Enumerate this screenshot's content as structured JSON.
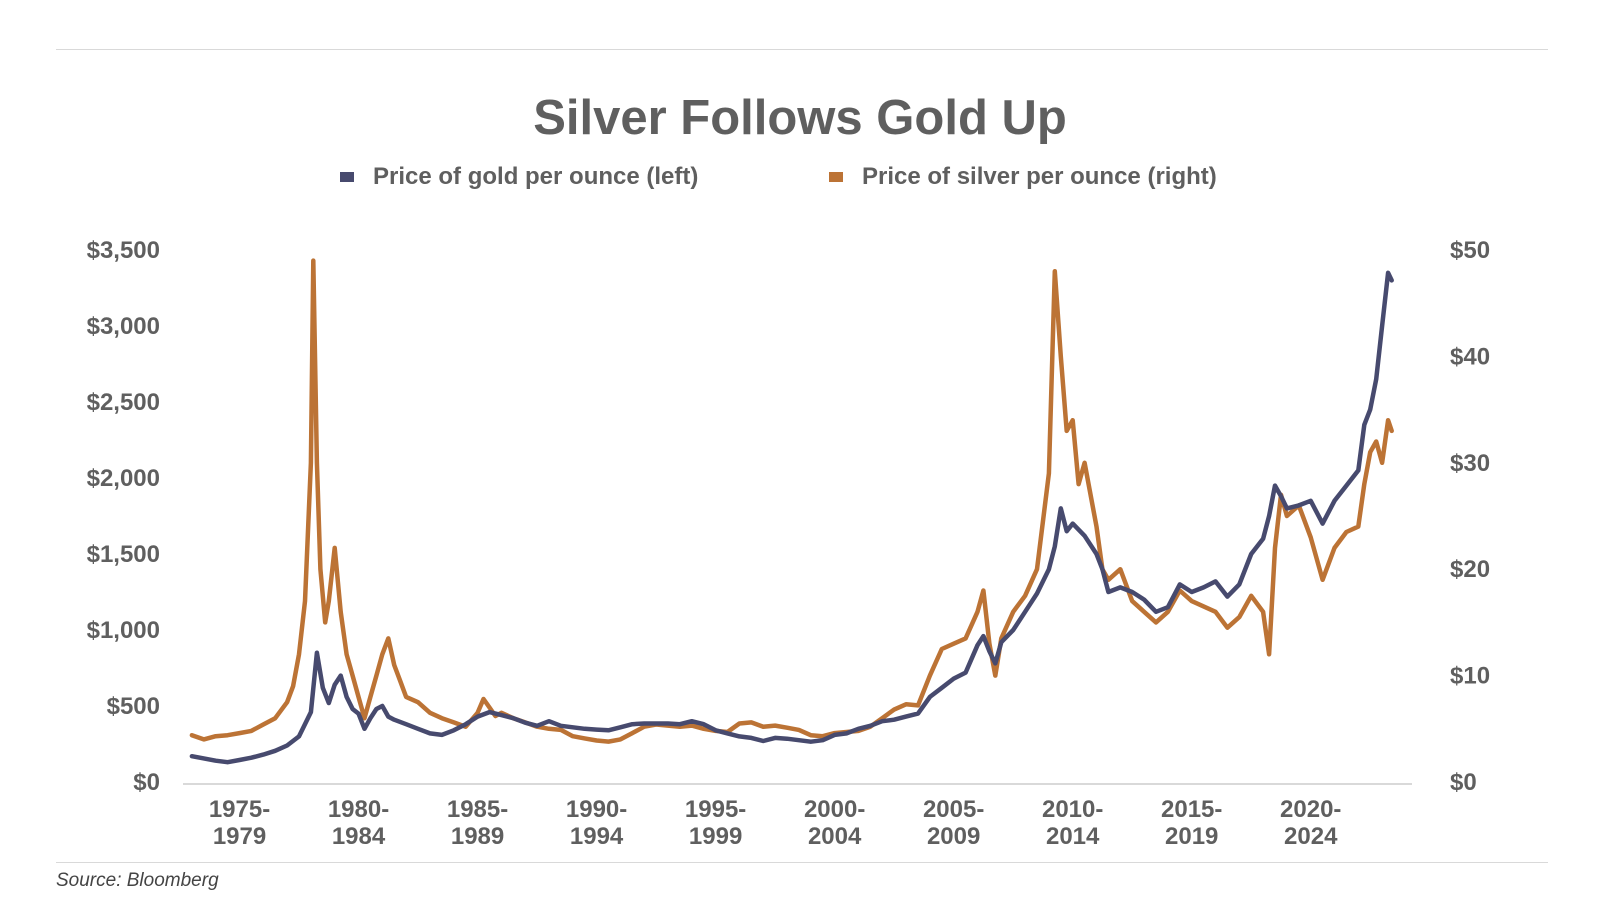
{
  "chart_data": {
    "type": "line",
    "title": "Silver Follows Gold Up",
    "colors": {
      "gold": "#474a6e",
      "silver": "#bc7335",
      "axis": "#d9d9d9",
      "text": "#5f5f5f"
    },
    "legend": {
      "placement": "top-center"
    },
    "grid": false,
    "left_axis": {
      "ylim": [
        0,
        3500
      ],
      "ticks": [
        0,
        500,
        1000,
        1500,
        2000,
        2500,
        3000,
        3500
      ],
      "tick_labels": [
        "$0",
        "$500",
        "$1,000",
        "$1,500",
        "$2,000",
        "$2,500",
        "$3,000",
        "$3,500"
      ]
    },
    "right_axis": {
      "ylim": [
        0,
        50
      ],
      "ticks": [
        0,
        10,
        20,
        30,
        40,
        50
      ],
      "tick_labels": [
        "$0",
        "$10",
        "$20",
        "$30",
        "$40",
        "$50"
      ]
    },
    "x_axis": {
      "xlim": [
        1974.5,
        2025.75
      ],
      "category_labels": [
        {
          "x": 1977,
          "line1": "1975-",
          "line2": "1979"
        },
        {
          "x": 1982,
          "line1": "1980-",
          "line2": "1984"
        },
        {
          "x": 1987,
          "line1": "1985-",
          "line2": "1989"
        },
        {
          "x": 1992,
          "line1": "1990-",
          "line2": "1994"
        },
        {
          "x": 1997,
          "line1": "1995-",
          "line2": "1999"
        },
        {
          "x": 2002,
          "line1": "2000-",
          "line2": "2004"
        },
        {
          "x": 2007,
          "line1": "2005-",
          "line2": "2009"
        },
        {
          "x": 2012,
          "line1": "2010-",
          "line2": "2014"
        },
        {
          "x": 2017,
          "line1": "2015-",
          "line2": "2019"
        },
        {
          "x": 2022,
          "line1": "2020-",
          "line2": "2024"
        }
      ]
    },
    "series": [
      {
        "name": "Price of gold per ounce (left)",
        "axis": "left",
        "points": [
          [
            1975,
            170
          ],
          [
            1975.5,
            155
          ],
          [
            1976,
            140
          ],
          [
            1976.5,
            130
          ],
          [
            1977,
            145
          ],
          [
            1977.5,
            160
          ],
          [
            1978,
            180
          ],
          [
            1978.5,
            205
          ],
          [
            1979,
            240
          ],
          [
            1979.5,
            300
          ],
          [
            1980,
            460
          ],
          [
            1980.25,
            850
          ],
          [
            1980.5,
            620
          ],
          [
            1980.75,
            520
          ],
          [
            1981,
            640
          ],
          [
            1981.25,
            700
          ],
          [
            1981.5,
            560
          ],
          [
            1981.75,
            480
          ],
          [
            1982,
            450
          ],
          [
            1982.25,
            350
          ],
          [
            1982.5,
            420
          ],
          [
            1982.75,
            480
          ],
          [
            1983,
            500
          ],
          [
            1983.25,
            430
          ],
          [
            1983.5,
            410
          ],
          [
            1984,
            380
          ],
          [
            1984.5,
            350
          ],
          [
            1985,
            320
          ],
          [
            1985.5,
            310
          ],
          [
            1986,
            340
          ],
          [
            1986.5,
            380
          ],
          [
            1987,
            430
          ],
          [
            1987.5,
            460
          ],
          [
            1988,
            440
          ],
          [
            1988.5,
            420
          ],
          [
            1989,
            390
          ],
          [
            1989.5,
            370
          ],
          [
            1990,
            400
          ],
          [
            1990.5,
            370
          ],
          [
            1991,
            360
          ],
          [
            1991.5,
            350
          ],
          [
            1992,
            345
          ],
          [
            1992.5,
            340
          ],
          [
            1993,
            360
          ],
          [
            1993.5,
            380
          ],
          [
            1994,
            385
          ],
          [
            1994.5,
            385
          ],
          [
            1995,
            385
          ],
          [
            1995.5,
            380
          ],
          [
            1996,
            400
          ],
          [
            1996.5,
            380
          ],
          [
            1997,
            340
          ],
          [
            1997.5,
            320
          ],
          [
            1998,
            300
          ],
          [
            1998.5,
            290
          ],
          [
            1999,
            270
          ],
          [
            1999.5,
            290
          ],
          [
            2000,
            285
          ],
          [
            2000.5,
            275
          ],
          [
            2001,
            265
          ],
          [
            2001.5,
            275
          ],
          [
            2002,
            310
          ],
          [
            2002.5,
            320
          ],
          [
            2003,
            350
          ],
          [
            2003.5,
            370
          ],
          [
            2004,
            400
          ],
          [
            2004.5,
            410
          ],
          [
            2005,
            430
          ],
          [
            2005.5,
            450
          ],
          [
            2006,
            560
          ],
          [
            2006.5,
            620
          ],
          [
            2007,
            680
          ],
          [
            2007.5,
            720
          ],
          [
            2008,
            900
          ],
          [
            2008.25,
            960
          ],
          [
            2008.5,
            860
          ],
          [
            2008.75,
            780
          ],
          [
            2009,
            920
          ],
          [
            2009.5,
            1000
          ],
          [
            2010,
            1120
          ],
          [
            2010.5,
            1240
          ],
          [
            2011,
            1400
          ],
          [
            2011.25,
            1550
          ],
          [
            2011.5,
            1800
          ],
          [
            2011.75,
            1650
          ],
          [
            2012,
            1700
          ],
          [
            2012.5,
            1620
          ],
          [
            2013,
            1500
          ],
          [
            2013.25,
            1400
          ],
          [
            2013.5,
            1250
          ],
          [
            2014,
            1280
          ],
          [
            2014.5,
            1250
          ],
          [
            2015,
            1200
          ],
          [
            2015.5,
            1120
          ],
          [
            2016,
            1150
          ],
          [
            2016.5,
            1300
          ],
          [
            2017,
            1250
          ],
          [
            2017.5,
            1280
          ],
          [
            2018,
            1320
          ],
          [
            2018.5,
            1220
          ],
          [
            2019,
            1300
          ],
          [
            2019.5,
            1500
          ],
          [
            2020,
            1600
          ],
          [
            2020.25,
            1750
          ],
          [
            2020.5,
            1950
          ],
          [
            2020.75,
            1880
          ],
          [
            2021,
            1800
          ],
          [
            2021.5,
            1820
          ],
          [
            2022,
            1850
          ],
          [
            2022.5,
            1700
          ],
          [
            2023,
            1850
          ],
          [
            2023.5,
            1950
          ],
          [
            2024,
            2050
          ],
          [
            2024.25,
            2350
          ],
          [
            2024.5,
            2450
          ],
          [
            2024.75,
            2650
          ],
          [
            2025,
            3000
          ],
          [
            2025.25,
            3350
          ],
          [
            2025.4,
            3300
          ]
        ]
      },
      {
        "name": "Price of silver per ounce (right)",
        "axis": "right",
        "points": [
          [
            1975,
            4.4
          ],
          [
            1975.5,
            4.0
          ],
          [
            1976,
            4.3
          ],
          [
            1976.5,
            4.4
          ],
          [
            1977,
            4.6
          ],
          [
            1977.5,
            4.8
          ],
          [
            1978,
            5.4
          ],
          [
            1978.5,
            6.0
          ],
          [
            1979,
            7.5
          ],
          [
            1979.25,
            9.0
          ],
          [
            1979.5,
            12.0
          ],
          [
            1979.75,
            17.0
          ],
          [
            1980,
            30.0
          ],
          [
            1980.1,
            49.0
          ],
          [
            1980.25,
            30.0
          ],
          [
            1980.4,
            20.0
          ],
          [
            1980.6,
            15.0
          ],
          [
            1980.75,
            17.0
          ],
          [
            1981,
            22.0
          ],
          [
            1981.25,
            16.0
          ],
          [
            1981.5,
            12.0
          ],
          [
            1981.75,
            10.0
          ],
          [
            1982,
            8.0
          ],
          [
            1982.25,
            6.0
          ],
          [
            1982.5,
            8.0
          ],
          [
            1982.75,
            10.0
          ],
          [
            1983,
            12.0
          ],
          [
            1983.25,
            13.5
          ],
          [
            1983.5,
            11.0
          ],
          [
            1983.75,
            9.5
          ],
          [
            1984,
            8.0
          ],
          [
            1984.5,
            7.5
          ],
          [
            1985,
            6.5
          ],
          [
            1985.5,
            6.0
          ],
          [
            1986,
            5.6
          ],
          [
            1986.5,
            5.2
          ],
          [
            1987,
            6.5
          ],
          [
            1987.25,
            7.8
          ],
          [
            1987.5,
            7.0
          ],
          [
            1987.75,
            6.2
          ],
          [
            1988,
            6.5
          ],
          [
            1988.5,
            6.0
          ],
          [
            1989,
            5.6
          ],
          [
            1989.5,
            5.2
          ],
          [
            1990,
            5.0
          ],
          [
            1990.5,
            4.9
          ],
          [
            1991,
            4.3
          ],
          [
            1991.5,
            4.1
          ],
          [
            1992,
            3.9
          ],
          [
            1992.5,
            3.8
          ],
          [
            1993,
            4.0
          ],
          [
            1993.5,
            4.6
          ],
          [
            1994,
            5.2
          ],
          [
            1994.5,
            5.4
          ],
          [
            1995,
            5.3
          ],
          [
            1995.5,
            5.2
          ],
          [
            1996,
            5.3
          ],
          [
            1996.5,
            5.0
          ],
          [
            1997,
            4.8
          ],
          [
            1997.5,
            4.7
          ],
          [
            1998,
            5.5
          ],
          [
            1998.5,
            5.6
          ],
          [
            1999,
            5.2
          ],
          [
            1999.5,
            5.3
          ],
          [
            2000,
            5.1
          ],
          [
            2000.5,
            4.9
          ],
          [
            2001,
            4.4
          ],
          [
            2001.5,
            4.3
          ],
          [
            2002,
            4.6
          ],
          [
            2002.5,
            4.7
          ],
          [
            2003,
            4.8
          ],
          [
            2003.5,
            5.2
          ],
          [
            2004,
            6.0
          ],
          [
            2004.5,
            6.8
          ],
          [
            2005,
            7.3
          ],
          [
            2005.5,
            7.2
          ],
          [
            2006,
            10.0
          ],
          [
            2006.5,
            12.5
          ],
          [
            2007,
            13.0
          ],
          [
            2007.5,
            13.5
          ],
          [
            2008,
            16.0
          ],
          [
            2008.25,
            18.0
          ],
          [
            2008.5,
            13.0
          ],
          [
            2008.75,
            10.0
          ],
          [
            2009,
            13.5
          ],
          [
            2009.5,
            16.0
          ],
          [
            2010,
            17.5
          ],
          [
            2010.5,
            20.0
          ],
          [
            2011,
            29.0
          ],
          [
            2011.25,
            48.0
          ],
          [
            2011.5,
            40.0
          ],
          [
            2011.75,
            33.0
          ],
          [
            2012,
            34.0
          ],
          [
            2012.25,
            28.0
          ],
          [
            2012.5,
            30.0
          ],
          [
            2013,
            24.0
          ],
          [
            2013.25,
            20.0
          ],
          [
            2013.5,
            19.0
          ],
          [
            2014,
            20.0
          ],
          [
            2014.5,
            17.0
          ],
          [
            2015,
            16.0
          ],
          [
            2015.5,
            15.0
          ],
          [
            2016,
            16.0
          ],
          [
            2016.5,
            18.0
          ],
          [
            2017,
            17.0
          ],
          [
            2017.5,
            16.5
          ],
          [
            2018,
            16.0
          ],
          [
            2018.5,
            14.5
          ],
          [
            2019,
            15.5
          ],
          [
            2019.5,
            17.5
          ],
          [
            2020,
            16.0
          ],
          [
            2020.25,
            12.0
          ],
          [
            2020.5,
            22.0
          ],
          [
            2020.75,
            27.0
          ],
          [
            2021,
            25.0
          ],
          [
            2021.5,
            26.0
          ],
          [
            2022,
            23.0
          ],
          [
            2022.5,
            19.0
          ],
          [
            2023,
            22.0
          ],
          [
            2023.5,
            23.5
          ],
          [
            2024,
            24.0
          ],
          [
            2024.25,
            28.0
          ],
          [
            2024.5,
            31.0
          ],
          [
            2024.75,
            32.0
          ],
          [
            2025,
            30.0
          ],
          [
            2025.25,
            34.0
          ],
          [
            2025.4,
            33.0
          ]
        ]
      }
    ],
    "source": "Source: Bloomberg"
  }
}
